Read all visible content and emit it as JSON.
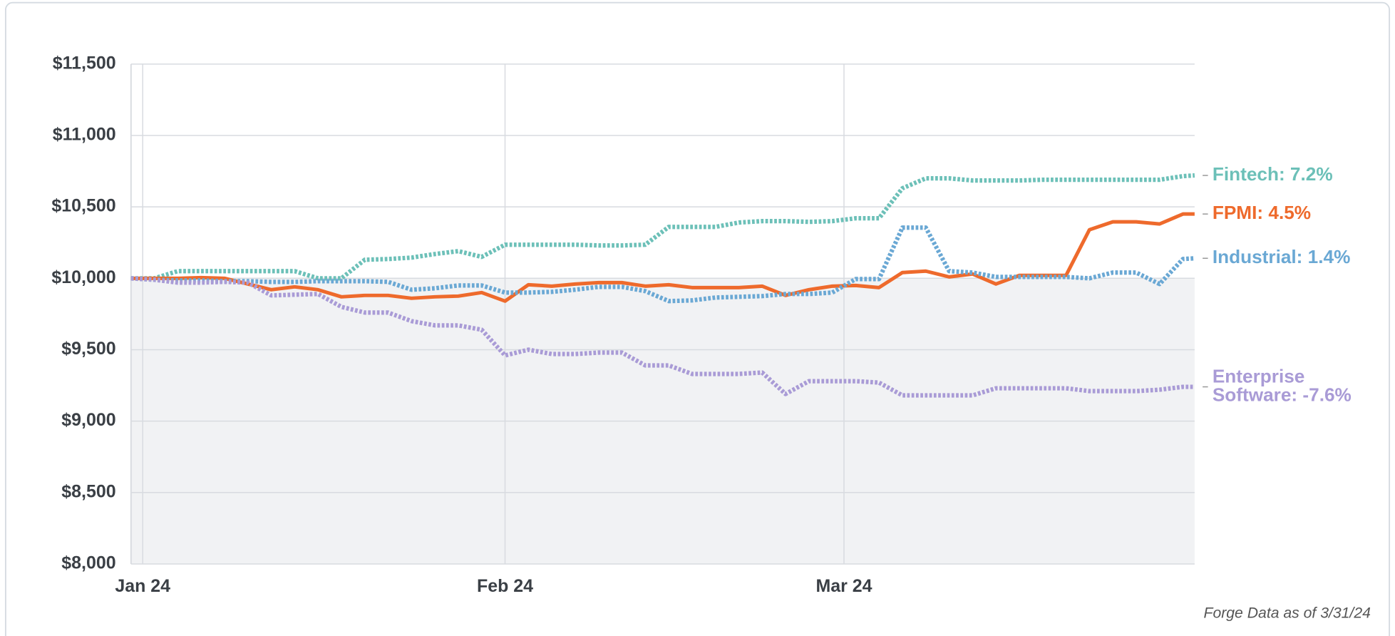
{
  "chart_data": {
    "type": "line",
    "x": [
      -1,
      1,
      3,
      5,
      7,
      9,
      11,
      13,
      15,
      17,
      19,
      21,
      23,
      25,
      27,
      29,
      31,
      33,
      35,
      37,
      39,
      41,
      43,
      45,
      47,
      49,
      51,
      53,
      55,
      57,
      59,
      61,
      63,
      65,
      67,
      69,
      71,
      73,
      75,
      77,
      79,
      81,
      83,
      85,
      87,
      89,
      90
    ],
    "xlim": [
      -1,
      90
    ],
    "xticks": [
      {
        "value": 0,
        "label": "Jan 24"
      },
      {
        "value": 31,
        "label": "Feb 24"
      },
      {
        "value": 60,
        "label": "Mar 24"
      }
    ],
    "ylim": [
      8000,
      11500
    ],
    "yticks": [
      {
        "value": 8000,
        "label": "$8,000"
      },
      {
        "value": 8500,
        "label": "$8,500"
      },
      {
        "value": 9000,
        "label": "$9,000"
      },
      {
        "value": 9500,
        "label": "$9,500"
      },
      {
        "value": 10000,
        "label": "$10,000"
      },
      {
        "value": 10500,
        "label": "$10,500"
      },
      {
        "value": 11000,
        "label": "$11,000"
      },
      {
        "value": 11500,
        "label": "$11,500"
      }
    ],
    "grid": true,
    "baseline": 10000,
    "note": "Forge Data as of 3/31/24",
    "series": [
      {
        "name": "Fintech: 7.2%",
        "color": "#6cc0b8",
        "style": "dotted",
        "values": [
          10000,
          10000,
          10050,
          10050,
          10050,
          10050,
          10050,
          10050,
          10000,
          10000,
          10130,
          10135,
          10145,
          10170,
          10190,
          10150,
          10235,
          10235,
          10235,
          10235,
          10230,
          10230,
          10235,
          10360,
          10360,
          10360,
          10390,
          10400,
          10400,
          10395,
          10400,
          10420,
          10420,
          10630,
          10700,
          10700,
          10685,
          10685,
          10685,
          10690,
          10690,
          10690,
          10690,
          10690,
          10690,
          10715,
          10720
        ]
      },
      {
        "name": "FPMI: 4.5%",
        "color": "#ee6a2c",
        "style": "solid",
        "values": [
          10000,
          10000,
          10000,
          10005,
          10000,
          9960,
          9920,
          9940,
          9920,
          9870,
          9880,
          9880,
          9860,
          9870,
          9875,
          9900,
          9840,
          9955,
          9945,
          9960,
          9970,
          9970,
          9945,
          9955,
          9935,
          9935,
          9935,
          9945,
          9880,
          9920,
          9945,
          9950,
          9935,
          10040,
          10050,
          10010,
          10030,
          9960,
          10020,
          10020,
          10020,
          10340,
          10395,
          10395,
          10380,
          10450,
          10450
        ]
      },
      {
        "name": "Industrial: 1.4%",
        "color": "#6aa8d4",
        "style": "dotted",
        "values": [
          10000,
          9990,
          9985,
          9985,
          9980,
          9980,
          9975,
          9975,
          9980,
          9980,
          9980,
          9975,
          9920,
          9930,
          9950,
          9950,
          9900,
          9900,
          9905,
          9920,
          9940,
          9940,
          9910,
          9840,
          9845,
          9865,
          9870,
          9875,
          9890,
          9890,
          9900,
          9995,
          9995,
          10355,
          10355,
          10050,
          10040,
          10010,
          10010,
          10010,
          10010,
          10000,
          10040,
          10040,
          9960,
          10135,
          10140
        ]
      },
      {
        "name": "Enterprise Software: -7.6%",
        "color": "#a99bd6",
        "style": "dotted",
        "values": [
          10000,
          9990,
          9970,
          9970,
          9975,
          9970,
          9880,
          9885,
          9890,
          9800,
          9760,
          9760,
          9700,
          9670,
          9670,
          9640,
          9460,
          9500,
          9470,
          9470,
          9480,
          9480,
          9390,
          9390,
          9330,
          9330,
          9330,
          9340,
          9190,
          9280,
          9280,
          9280,
          9270,
          9180,
          9180,
          9180,
          9180,
          9230,
          9230,
          9230,
          9230,
          9210,
          9210,
          9210,
          9220,
          9240,
          9240
        ]
      }
    ]
  }
}
